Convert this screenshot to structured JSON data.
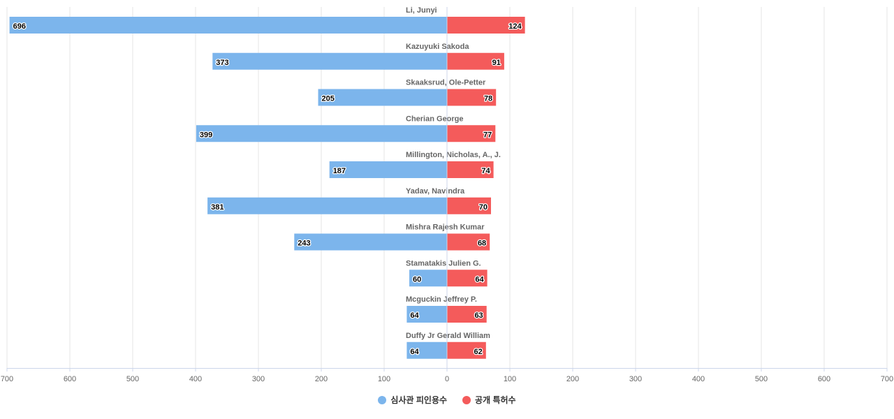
{
  "chart_data": {
    "type": "bar",
    "orientation": "horizontal-diverging",
    "categories": [
      "Li, Junyi",
      "Kazuyuki Sakoda",
      "Skaaksrud, Ole-Petter",
      "Cherian George",
      "Millington, Nicholas, A., J.",
      "Yadav, Navindra",
      "Mishra Rajesh Kumar",
      "Stamatakis Julien G.",
      "Mcguckin Jeffrey P.",
      "Duffy Jr Gerald William"
    ],
    "series": [
      {
        "name": "심사관 피인용수",
        "color": "#7cb5ec",
        "side": "left",
        "values": [
          696,
          373,
          205,
          399,
          187,
          381,
          243,
          60,
          64,
          64
        ]
      },
      {
        "name": "공개 특허수",
        "color": "#f45b5b",
        "side": "right",
        "values": [
          124,
          91,
          78,
          77,
          74,
          70,
          68,
          64,
          63,
          62
        ]
      }
    ],
    "xlim": [
      -700,
      700
    ],
    "tick_labels": [
      "700",
      "600",
      "500",
      "400",
      "300",
      "200",
      "100",
      "0",
      "100",
      "200",
      "300",
      "400",
      "500",
      "600",
      "700"
    ],
    "grid": true,
    "legend_position": "bottom",
    "data_labels": true
  }
}
